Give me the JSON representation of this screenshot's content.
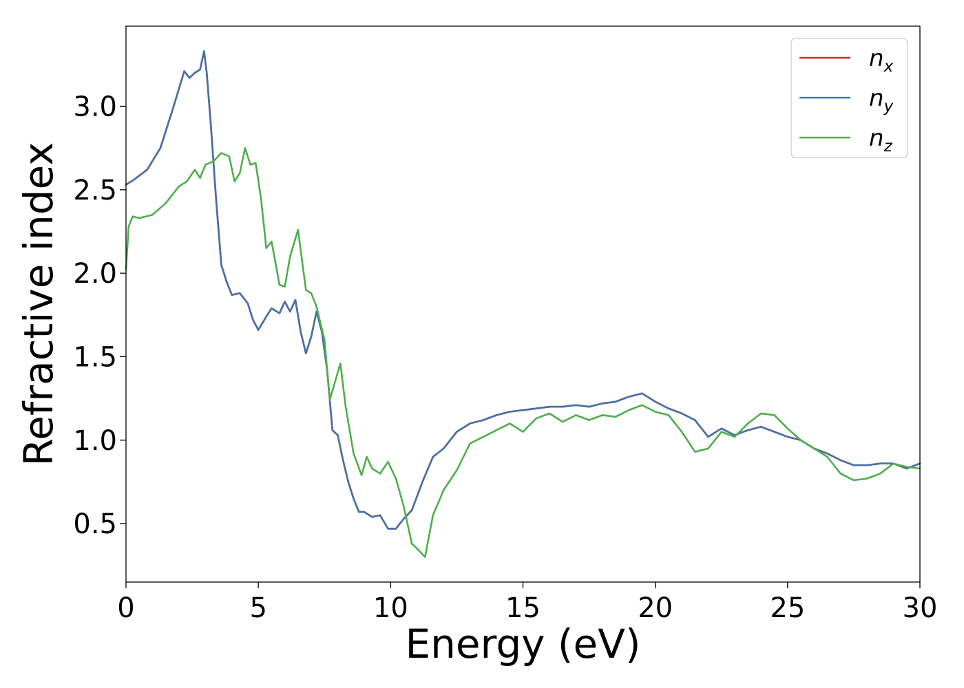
{
  "chart_data": {
    "type": "line",
    "title": "",
    "xlabel": "Energy (eV)",
    "ylabel": "Refractive index",
    "xlim": [
      0,
      30
    ],
    "ylim": [
      0.15,
      3.48
    ],
    "xticks": [
      0,
      5,
      10,
      15,
      20,
      25,
      30
    ],
    "xtick_labels": [
      "0",
      "5",
      "10",
      "15",
      "20",
      "25",
      "30"
    ],
    "yticks": [
      0.5,
      1.0,
      1.5,
      2.0,
      2.5,
      3.0
    ],
    "ytick_labels": [
      "0.5",
      "1.0",
      "1.5",
      "2.0",
      "2.5",
      "3.0"
    ],
    "grid": false,
    "legend_position": "top-right",
    "series": [
      {
        "name": "n",
        "subscript": "x",
        "color": "#d62728",
        "x": [
          0,
          0.3,
          0.8,
          1.3,
          1.8,
          2.2,
          2.4,
          2.6,
          2.8,
          2.95,
          3.05,
          3.2,
          3.4,
          3.6,
          3.8,
          4.0,
          4.3,
          4.6,
          4.8,
          5.0,
          5.3,
          5.5,
          5.8,
          6.0,
          6.2,
          6.4,
          6.6,
          6.8,
          7.0,
          7.2,
          7.4,
          7.6,
          7.8,
          8.0,
          8.2,
          8.4,
          8.6,
          8.8,
          9.0,
          9.3,
          9.6,
          9.9,
          10.2,
          10.5,
          10.8,
          11.2,
          11.6,
          12.0,
          12.5,
          13.0,
          13.5,
          14.0,
          14.5,
          15.0,
          15.5,
          16.0,
          16.5,
          17.0,
          17.5,
          18.0,
          18.5,
          19.0,
          19.5,
          20.0,
          20.5,
          21.0,
          21.5,
          22.0,
          22.5,
          23.0,
          23.5,
          24.0,
          24.5,
          25.0,
          25.5,
          26.0,
          26.5,
          27.0,
          27.5,
          28.0,
          28.5,
          29.0,
          29.5,
          30.0
        ],
        "values": [
          2.53,
          2.56,
          2.62,
          2.75,
          3.0,
          3.21,
          3.17,
          3.2,
          3.22,
          3.33,
          3.2,
          2.9,
          2.45,
          2.05,
          1.95,
          1.87,
          1.88,
          1.82,
          1.72,
          1.66,
          1.74,
          1.79,
          1.76,
          1.83,
          1.77,
          1.84,
          1.65,
          1.52,
          1.62,
          1.77,
          1.65,
          1.42,
          1.06,
          1.03,
          0.88,
          0.75,
          0.65,
          0.57,
          0.57,
          0.54,
          0.55,
          0.47,
          0.47,
          0.53,
          0.58,
          0.75,
          0.9,
          0.95,
          1.05,
          1.1,
          1.12,
          1.15,
          1.17,
          1.18,
          1.19,
          1.2,
          1.2,
          1.21,
          1.2,
          1.22,
          1.23,
          1.26,
          1.28,
          1.23,
          1.19,
          1.16,
          1.12,
          1.02,
          1.07,
          1.03,
          1.06,
          1.08,
          1.05,
          1.02,
          1.0,
          0.95,
          0.92,
          0.88,
          0.85,
          0.85,
          0.86,
          0.86,
          0.83,
          0.86
        ]
      },
      {
        "name": "n",
        "subscript": "y",
        "color": "#4472a8",
        "x": [
          0,
          0.3,
          0.8,
          1.3,
          1.8,
          2.2,
          2.4,
          2.6,
          2.8,
          2.95,
          3.05,
          3.2,
          3.4,
          3.6,
          3.8,
          4.0,
          4.3,
          4.6,
          4.8,
          5.0,
          5.3,
          5.5,
          5.8,
          6.0,
          6.2,
          6.4,
          6.6,
          6.8,
          7.0,
          7.2,
          7.4,
          7.6,
          7.8,
          8.0,
          8.2,
          8.4,
          8.6,
          8.8,
          9.0,
          9.3,
          9.6,
          9.9,
          10.2,
          10.5,
          10.8,
          11.2,
          11.6,
          12.0,
          12.5,
          13.0,
          13.5,
          14.0,
          14.5,
          15.0,
          15.5,
          16.0,
          16.5,
          17.0,
          17.5,
          18.0,
          18.5,
          19.0,
          19.5,
          20.0,
          20.5,
          21.0,
          21.5,
          22.0,
          22.5,
          23.0,
          23.5,
          24.0,
          24.5,
          25.0,
          25.5,
          26.0,
          26.5,
          27.0,
          27.5,
          28.0,
          28.5,
          29.0,
          29.5,
          30.0
        ],
        "values": [
          2.53,
          2.56,
          2.62,
          2.75,
          3.0,
          3.21,
          3.17,
          3.2,
          3.22,
          3.33,
          3.2,
          2.9,
          2.45,
          2.05,
          1.95,
          1.87,
          1.88,
          1.82,
          1.72,
          1.66,
          1.74,
          1.79,
          1.76,
          1.83,
          1.77,
          1.84,
          1.65,
          1.52,
          1.62,
          1.77,
          1.65,
          1.42,
          1.06,
          1.03,
          0.88,
          0.75,
          0.65,
          0.57,
          0.57,
          0.54,
          0.55,
          0.47,
          0.47,
          0.53,
          0.58,
          0.75,
          0.9,
          0.95,
          1.05,
          1.1,
          1.12,
          1.15,
          1.17,
          1.18,
          1.19,
          1.2,
          1.2,
          1.21,
          1.2,
          1.22,
          1.23,
          1.26,
          1.28,
          1.23,
          1.19,
          1.16,
          1.12,
          1.02,
          1.07,
          1.03,
          1.06,
          1.08,
          1.05,
          1.02,
          1.0,
          0.95,
          0.92,
          0.88,
          0.85,
          0.85,
          0.86,
          0.86,
          0.83,
          0.86
        ]
      },
      {
        "name": "n",
        "subscript": "z",
        "color": "#4daf4a",
        "x": [
          0,
          0.1,
          0.25,
          0.5,
          1.0,
          1.5,
          2.0,
          2.3,
          2.6,
          2.8,
          3.0,
          3.3,
          3.6,
          3.9,
          4.1,
          4.3,
          4.5,
          4.7,
          4.9,
          5.1,
          5.3,
          5.5,
          5.8,
          6.0,
          6.2,
          6.5,
          6.8,
          7.0,
          7.2,
          7.5,
          7.7,
          7.9,
          8.1,
          8.3,
          8.6,
          8.9,
          9.1,
          9.3,
          9.6,
          9.9,
          10.2,
          10.5,
          10.8,
          11.0,
          11.3,
          11.6,
          12.0,
          12.5,
          13.0,
          13.5,
          14.0,
          14.5,
          15.0,
          15.5,
          16.0,
          16.5,
          17.0,
          17.5,
          18.0,
          18.5,
          19.0,
          19.5,
          20.0,
          20.5,
          21.0,
          21.5,
          22.0,
          22.5,
          23.0,
          23.5,
          24.0,
          24.5,
          25.0,
          25.5,
          26.0,
          26.5,
          27.0,
          27.5,
          28.0,
          28.5,
          29.0,
          29.5,
          30.0
        ],
        "values": [
          2.02,
          2.28,
          2.34,
          2.33,
          2.35,
          2.42,
          2.52,
          2.55,
          2.62,
          2.57,
          2.65,
          2.67,
          2.72,
          2.7,
          2.55,
          2.6,
          2.75,
          2.65,
          2.66,
          2.45,
          2.15,
          2.19,
          1.93,
          1.92,
          2.1,
          2.26,
          1.9,
          1.88,
          1.8,
          1.6,
          1.24,
          1.35,
          1.46,
          1.2,
          0.92,
          0.79,
          0.9,
          0.83,
          0.8,
          0.87,
          0.77,
          0.6,
          0.38,
          0.35,
          0.3,
          0.55,
          0.7,
          0.82,
          0.98,
          1.02,
          1.06,
          1.1,
          1.05,
          1.13,
          1.16,
          1.11,
          1.15,
          1.12,
          1.15,
          1.14,
          1.18,
          1.21,
          1.17,
          1.15,
          1.05,
          0.93,
          0.95,
          1.05,
          1.02,
          1.1,
          1.16,
          1.15,
          1.07,
          1.0,
          0.95,
          0.9,
          0.8,
          0.76,
          0.77,
          0.8,
          0.86,
          0.84,
          0.83
        ]
      }
    ]
  }
}
